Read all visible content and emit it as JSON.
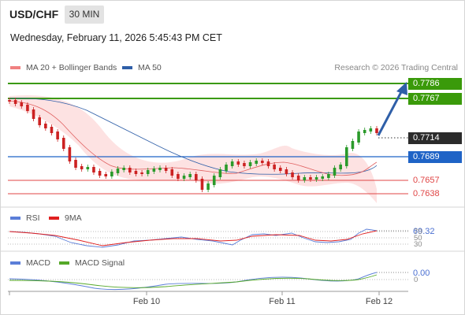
{
  "header": {
    "symbol": "USD/CHF",
    "timeframe": "30 MIN",
    "datetime": "Wednesday, February 11, 2026 5:45:43 PM CET"
  },
  "legend": {
    "ma20_label": "MA 20 + Bollinger Bands",
    "ma50_label": "MA 50",
    "credit": "Research © 2026 Trading Central",
    "ma20_color": "#f08080",
    "ma50_color": "#2f5fa8"
  },
  "levels": {
    "r2": "0.7786",
    "r1": "0.7767",
    "last": "0.7714",
    "pivot": "0.7689",
    "s1": "0.7657",
    "s2": "0.7638"
  },
  "rsi": {
    "label": "RSI",
    "ma_label": "9MA",
    "value": "69.32",
    "lvl_70": "70",
    "lvl_50": "50",
    "lvl_30": "30",
    "rsi_color": "#5b7ed8",
    "ma_color": "#e02020"
  },
  "macd": {
    "label": "MACD",
    "signal_label": "MACD Signal",
    "value": "0.00",
    "zero": "0",
    "macd_color": "#5b7ed8",
    "signal_color": "#55a828"
  },
  "xaxis": {
    "labels": [
      "Feb 10",
      "Feb 11",
      "Feb 12"
    ]
  },
  "colors": {
    "resistance": "#3a9a0a",
    "pivot": "#1f63c6",
    "support": "#e04545",
    "bull": "#2a9a2a",
    "bear": "#cc2222",
    "band": "#fde0e0",
    "arrow": "#2f5fa8"
  }
}
